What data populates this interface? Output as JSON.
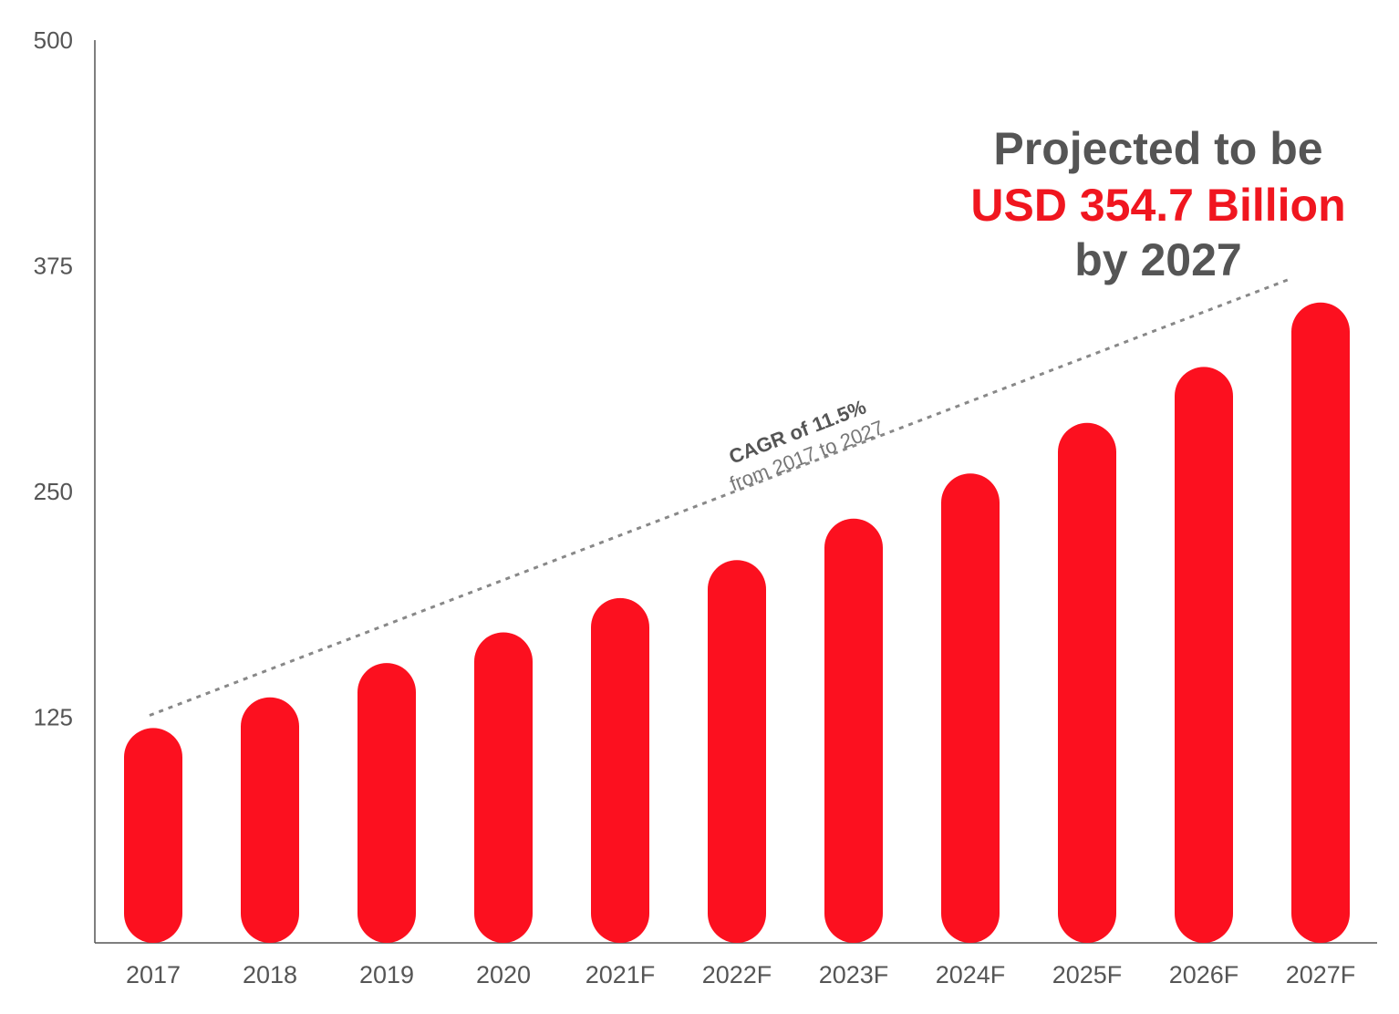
{
  "colors": {
    "bar": "#fc101f",
    "axis": "#555555",
    "text": "#555555",
    "highlight": "#f0161f",
    "trend": "#888888"
  },
  "headline": {
    "line1": "Projected to be",
    "line2": "USD 354.7 Billion",
    "line3": "by 2027"
  },
  "annotation": {
    "bold": "CAGR of 11.5%",
    "sub": "from 2017 to 2027"
  },
  "chart_data": {
    "type": "bar",
    "categories": [
      "2017",
      "2018",
      "2019",
      "2020",
      "2021F",
      "2022F",
      "2023F",
      "2024F",
      "2025F",
      "2026F",
      "2027F"
    ],
    "values": [
      119,
      136,
      155,
      172,
      191,
      212,
      235,
      260,
      288,
      319,
      354.7
    ],
    "ylim": [
      0,
      500
    ],
    "yticks": [
      125,
      250,
      375,
      500
    ],
    "trend_line": {
      "from": {
        "x": "2017",
        "y": 126
      },
      "to": {
        "x": "2027F",
        "y": 368
      },
      "style": "dotted"
    },
    "grid": false,
    "legend": "none"
  }
}
